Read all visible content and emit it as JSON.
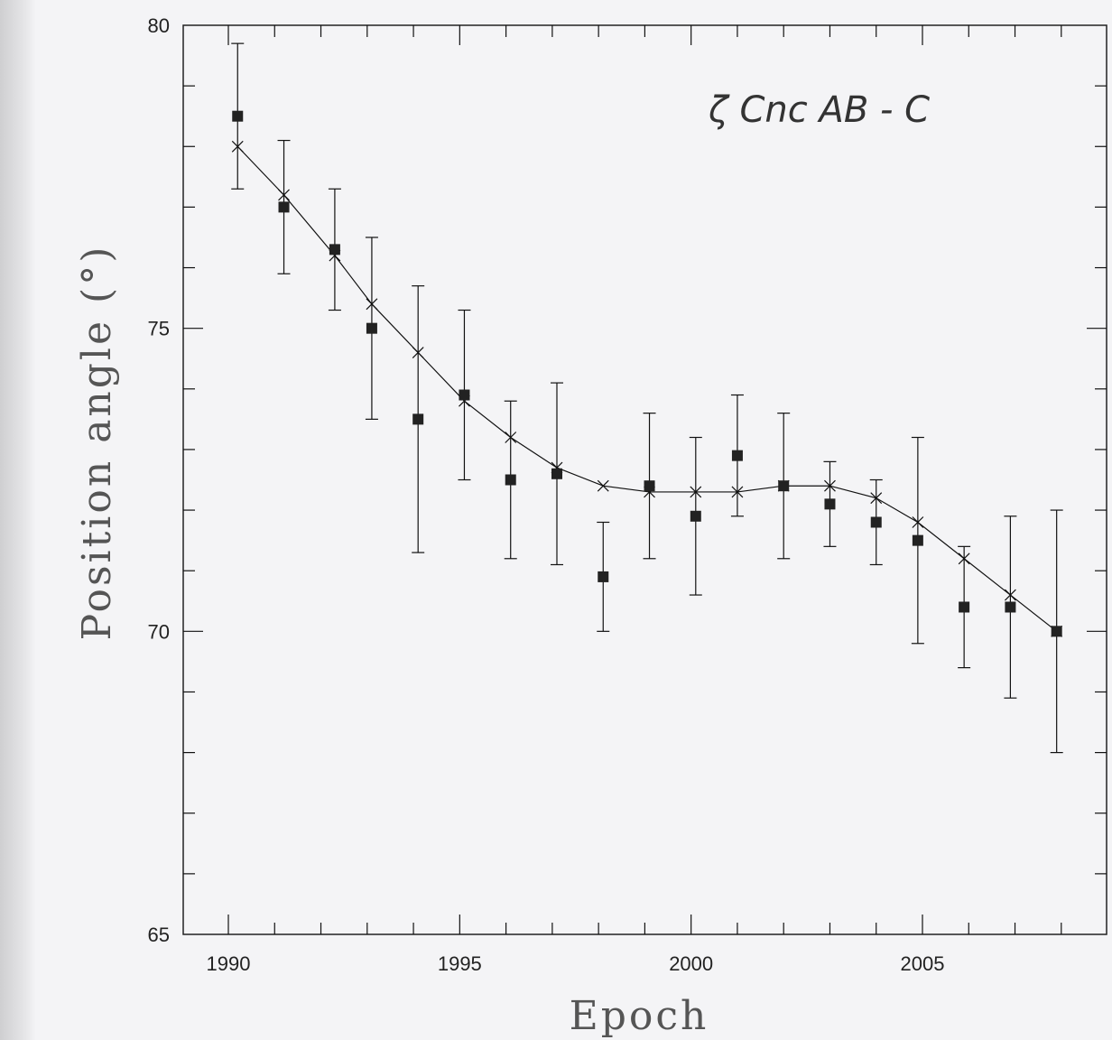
{
  "chart_data": {
    "type": "scatter",
    "xlabel": "Epoch",
    "ylabel": "Position angle (°)",
    "annotation": "ζ Cnc AB - C",
    "xlim": [
      1989,
      2009
    ],
    "ylim": [
      65,
      80
    ],
    "x_ticks": [
      1990,
      1995,
      2000,
      2005
    ],
    "x_tick_labels": [
      "1990",
      "1995",
      "2000",
      "2005"
    ],
    "y_ticks": [
      65,
      70,
      75,
      80
    ],
    "y_tick_labels": [
      "65",
      "70",
      "75",
      "80"
    ],
    "grid": false,
    "series": [
      {
        "marker": "filled-square",
        "x": [
          1990.2,
          1991.2,
          1992.3,
          1993.1,
          1994.1,
          1995.1,
          1996.1,
          1997.1,
          1998.1,
          1999.1,
          2000.1,
          2001.0,
          2002.0,
          2003.0,
          2004.0,
          2004.9,
          2005.9,
          2006.9,
          2007.9
        ],
        "y": [
          78.5,
          77.0,
          76.3,
          75.0,
          73.5,
          73.9,
          72.5,
          72.6,
          70.9,
          72.4,
          71.9,
          72.9,
          72.4,
          72.1,
          71.8,
          71.5,
          70.4,
          70.4,
          70.0
        ],
        "yerr": [
          1.2,
          1.1,
          1.0,
          1.5,
          2.2,
          1.4,
          1.3,
          1.5,
          0.9,
          1.2,
          1.3,
          1.0,
          1.2,
          0.7,
          0.7,
          1.7,
          1.0,
          1.5,
          2.0
        ]
      },
      {
        "marker": "cross-line",
        "x": [
          1990.2,
          1991.2,
          1992.3,
          1993.1,
          1994.1,
          1995.1,
          1996.1,
          1997.1,
          1998.1,
          1999.1,
          2000.1,
          2001.0,
          2002.0,
          2003.0,
          2004.0,
          2004.9,
          2005.9,
          2006.9,
          2007.9
        ],
        "y": [
          78.0,
          77.2,
          76.2,
          75.4,
          74.6,
          73.8,
          73.2,
          72.7,
          72.4,
          72.3,
          72.3,
          72.3,
          72.4,
          72.4,
          72.2,
          71.8,
          71.2,
          70.6,
          70.0
        ]
      }
    ],
    "colors": {
      "ink": "#111111",
      "background": "#f4f4f6"
    }
  }
}
